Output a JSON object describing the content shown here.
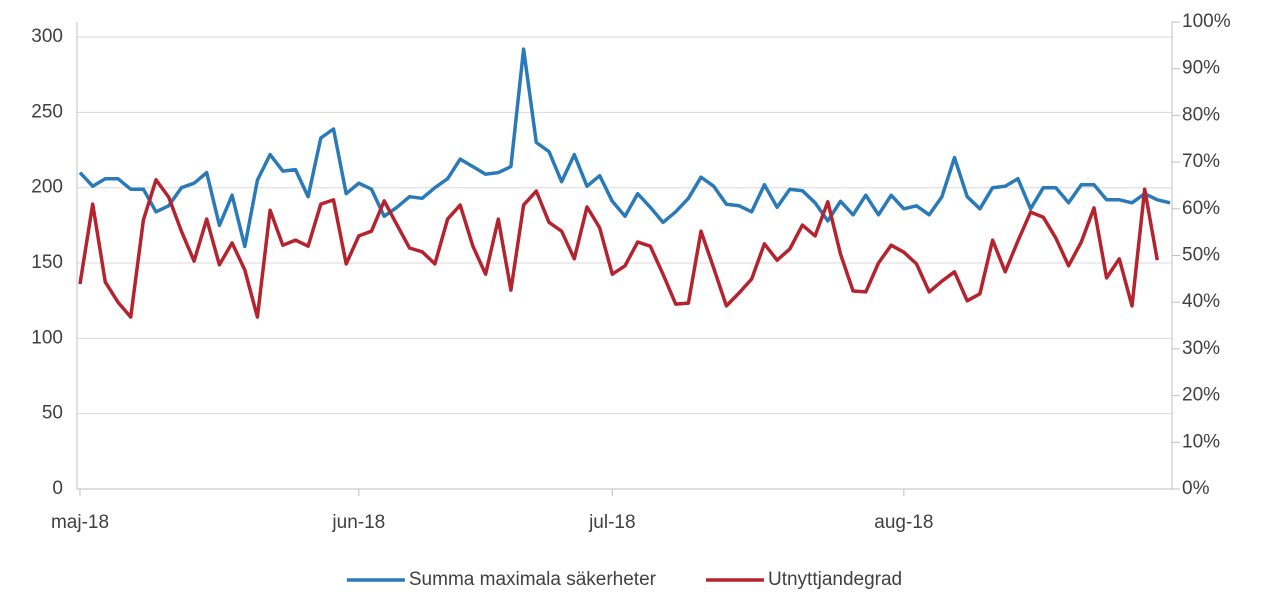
{
  "chart_data": {
    "type": "line",
    "categories": [
      "maj-18",
      null,
      null,
      null,
      null,
      null,
      null,
      null,
      null,
      null,
      null,
      null,
      null,
      null,
      null,
      null,
      null,
      null,
      null,
      null,
      null,
      null,
      "jun-18",
      null,
      null,
      null,
      null,
      null,
      null,
      null,
      null,
      null,
      null,
      null,
      null,
      null,
      null,
      null,
      null,
      null,
      null,
      null,
      "jul-18",
      null,
      null,
      null,
      null,
      null,
      null,
      null,
      null,
      null,
      null,
      null,
      null,
      null,
      null,
      null,
      null,
      null,
      null,
      null,
      null,
      null,
      null,
      "aug-18",
      null,
      null,
      null,
      null,
      null,
      null,
      null,
      null,
      null,
      null,
      null,
      null,
      null,
      null,
      null,
      null,
      null,
      null,
      null,
      null,
      null
    ],
    "series": [
      {
        "name": "Summa maximala säkerheter",
        "color": "#2a7ab9",
        "values": [
          210,
          201,
          206,
          206,
          199,
          199,
          184,
          188,
          200,
          203,
          210,
          175,
          195,
          161,
          205,
          222,
          211,
          212,
          194,
          233,
          239,
          196,
          203,
          199,
          181,
          187,
          194,
          193,
          200,
          206,
          219,
          214,
          209,
          210,
          214,
          292,
          230,
          224,
          204,
          222,
          201,
          208,
          191,
          181,
          196,
          187,
          177,
          184,
          193,
          207,
          201,
          189,
          188,
          184,
          202,
          187,
          199,
          198,
          190,
          178,
          191,
          182,
          195,
          182,
          195,
          186,
          188,
          182,
          194,
          220,
          194,
          186,
          200,
          201,
          206,
          186,
          200,
          200,
          190,
          202,
          202,
          192,
          192,
          190,
          196,
          192,
          190
        ]
      },
      {
        "name": "Utnyttjandegrad",
        "color": "#b5232f",
        "axis": "y2",
        "values": [
          43.9,
          61,
          44.3,
          40,
          36.8,
          57.6,
          66.2,
          62.5,
          55.2,
          48.8,
          57.8,
          48,
          52.7,
          46.9,
          36.8,
          59.7,
          52.2,
          53.3,
          52,
          61,
          61.9,
          48.2,
          54.2,
          55.2,
          61.7,
          56.6,
          51.6,
          50.8,
          48.2,
          57.8,
          60.8,
          52,
          46,
          57.8,
          42.6,
          60.8,
          63.8,
          57.1,
          55.2,
          49.3,
          60.4,
          55.9,
          46,
          47.8,
          52.9,
          52,
          46,
          39.6,
          39.8,
          55.2,
          47.3,
          39.2,
          42,
          45,
          52.5,
          49,
          51.4,
          56.5,
          54.2,
          61.5,
          50.3,
          42.4,
          42.2,
          48.4,
          52.2,
          50.7,
          48.2,
          42.2,
          44.5,
          46.5,
          40.3,
          41.8,
          53.3,
          46.5,
          53.1,
          59.3,
          58.2,
          53.7,
          47.8,
          52.9,
          60.2,
          45.2,
          49.3,
          39.2,
          64.2,
          49,
          null
        ]
      }
    ],
    "ylim": [
      0,
      310
    ],
    "yticks": [
      0,
      50,
      100,
      150,
      200,
      250,
      300
    ],
    "y2lim": [
      0,
      100
    ],
    "y2ticks": [
      {
        "value": 0,
        "label": "0%"
      },
      {
        "value": 10,
        "label": "10%"
      },
      {
        "value": 20,
        "label": "20%"
      },
      {
        "value": 30,
        "label": "30%"
      },
      {
        "value": 40,
        "label": "40%"
      },
      {
        "value": 50,
        "label": "50%"
      },
      {
        "value": 60,
        "label": "60%"
      },
      {
        "value": 70,
        "label": "70%"
      },
      {
        "value": 80,
        "label": "80%"
      },
      {
        "value": 90,
        "label": "90%"
      },
      {
        "value": 100,
        "label": "100%"
      }
    ],
    "grid": true,
    "legend": "bottom"
  }
}
